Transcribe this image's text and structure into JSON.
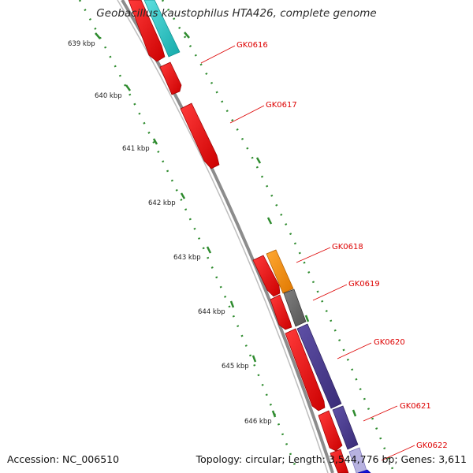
{
  "title": "Geobacillus kaustophilus HTA426, complete genome",
  "accession": "Accession: NC_006510",
  "summary": "Topology: circular; Length: 3,544,776 bp; Genes: 3,611",
  "ruler_ticks": [
    "639 kbp",
    "640 kbp",
    "641 kbp",
    "642 kbp",
    "643 kbp",
    "644 kbp",
    "645 kbp",
    "646 kbp"
  ],
  "gene_labels": [
    "GK0616",
    "GK0617",
    "GK0618",
    "GK0619",
    "GK0620",
    "GK0621",
    "GK0622"
  ],
  "colors": {
    "cds": "#ee0000",
    "label": "#dd0000",
    "tick": "#2e8b2e",
    "backbone": "#8c8c8c",
    "feature_cyan": "#22c8c8",
    "feature_orange": "#ff8c00",
    "feature_gray": "#666666",
    "feature_purple": "#4a3a8c",
    "feature_blue": "#1a1aee"
  }
}
